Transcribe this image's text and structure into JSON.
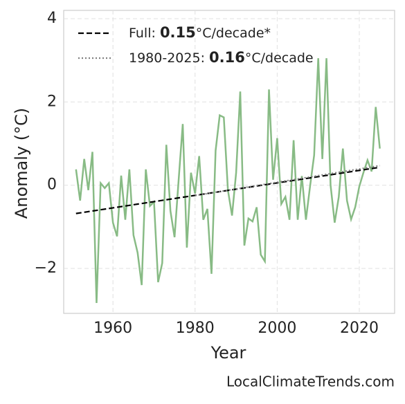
{
  "chart_data": {
    "type": "line",
    "xlabel": "Year",
    "ylabel": "Anomaly (°C)",
    "source": "LocalClimateTrends.com",
    "xlim": [
      1948,
      2028.6
    ],
    "ylim": [
      -3.08,
      4.2
    ],
    "xticks": [
      1960,
      1980,
      2000,
      2020
    ],
    "yticks": [
      {
        "value": -2,
        "label": "−2"
      },
      0,
      2,
      4
    ],
    "grid": true,
    "legend": "upper left",
    "series": [
      {
        "name": null,
        "color": "#88bb85",
        "style": "solid",
        "x": [
          1951,
          1952,
          1953,
          1954,
          1955,
          1956,
          1957,
          1958,
          1959,
          1960,
          1961,
          1962,
          1963,
          1964,
          1965,
          1966,
          1967,
          1968,
          1969,
          1970,
          1971,
          1972,
          1973,
          1974,
          1975,
          1976,
          1977,
          1978,
          1979,
          1980,
          1981,
          1982,
          1983,
          1984,
          1985,
          1986,
          1987,
          1988,
          1989,
          1990,
          1991,
          1992,
          1993,
          1994,
          1995,
          1996,
          1997,
          1998,
          1999,
          2000,
          2001,
          2002,
          2003,
          2004,
          2005,
          2006,
          2007,
          2008,
          2009,
          2010,
          2011,
          2012,
          2013,
          2014,
          2015,
          2016,
          2017,
          2018,
          2019,
          2020,
          2021,
          2022,
          2023,
          2024,
          2025
        ],
        "values": [
          0.38,
          -0.37,
          0.63,
          -0.12,
          0.8,
          -2.83,
          0.05,
          -0.07,
          0.05,
          -0.9,
          -1.23,
          0.23,
          -0.83,
          0.38,
          -1.2,
          -1.62,
          -2.4,
          0.38,
          -0.5,
          -0.4,
          -2.33,
          -1.87,
          0.97,
          -0.62,
          -1.25,
          0.13,
          1.47,
          -1.5,
          0.3,
          -0.2,
          0.7,
          -0.83,
          -0.57,
          -2.13,
          0.83,
          1.68,
          1.63,
          -0.12,
          -0.73,
          0.3,
          2.25,
          -1.45,
          -0.8,
          -0.87,
          -0.53,
          -1.67,
          -1.83,
          2.3,
          0.13,
          1.13,
          -0.45,
          -0.28,
          -0.83,
          1.08,
          -0.83,
          0.22,
          -0.83,
          -0.03,
          0.72,
          3.05,
          0.63,
          3.05,
          0,
          -0.9,
          -0.28,
          0.88,
          -0.37,
          -0.82,
          -0.53,
          -0.03,
          0.3,
          0.6,
          0.33,
          1.88,
          0.88
        ]
      },
      {
        "name": [
          "Full: ",
          "0.15",
          "°C/decade*"
        ],
        "color": "#000000",
        "style": "dashed",
        "x": [
          1951,
          2025
        ],
        "values": [
          -0.68,
          0.43
        ]
      },
      {
        "name": [
          "1980-2025: ",
          "0.16",
          "°C/decade"
        ],
        "color": "#808080",
        "style": "dotted",
        "x": [
          1980,
          2025
        ],
        "values": [
          -0.25,
          0.47
        ]
      }
    ]
  }
}
